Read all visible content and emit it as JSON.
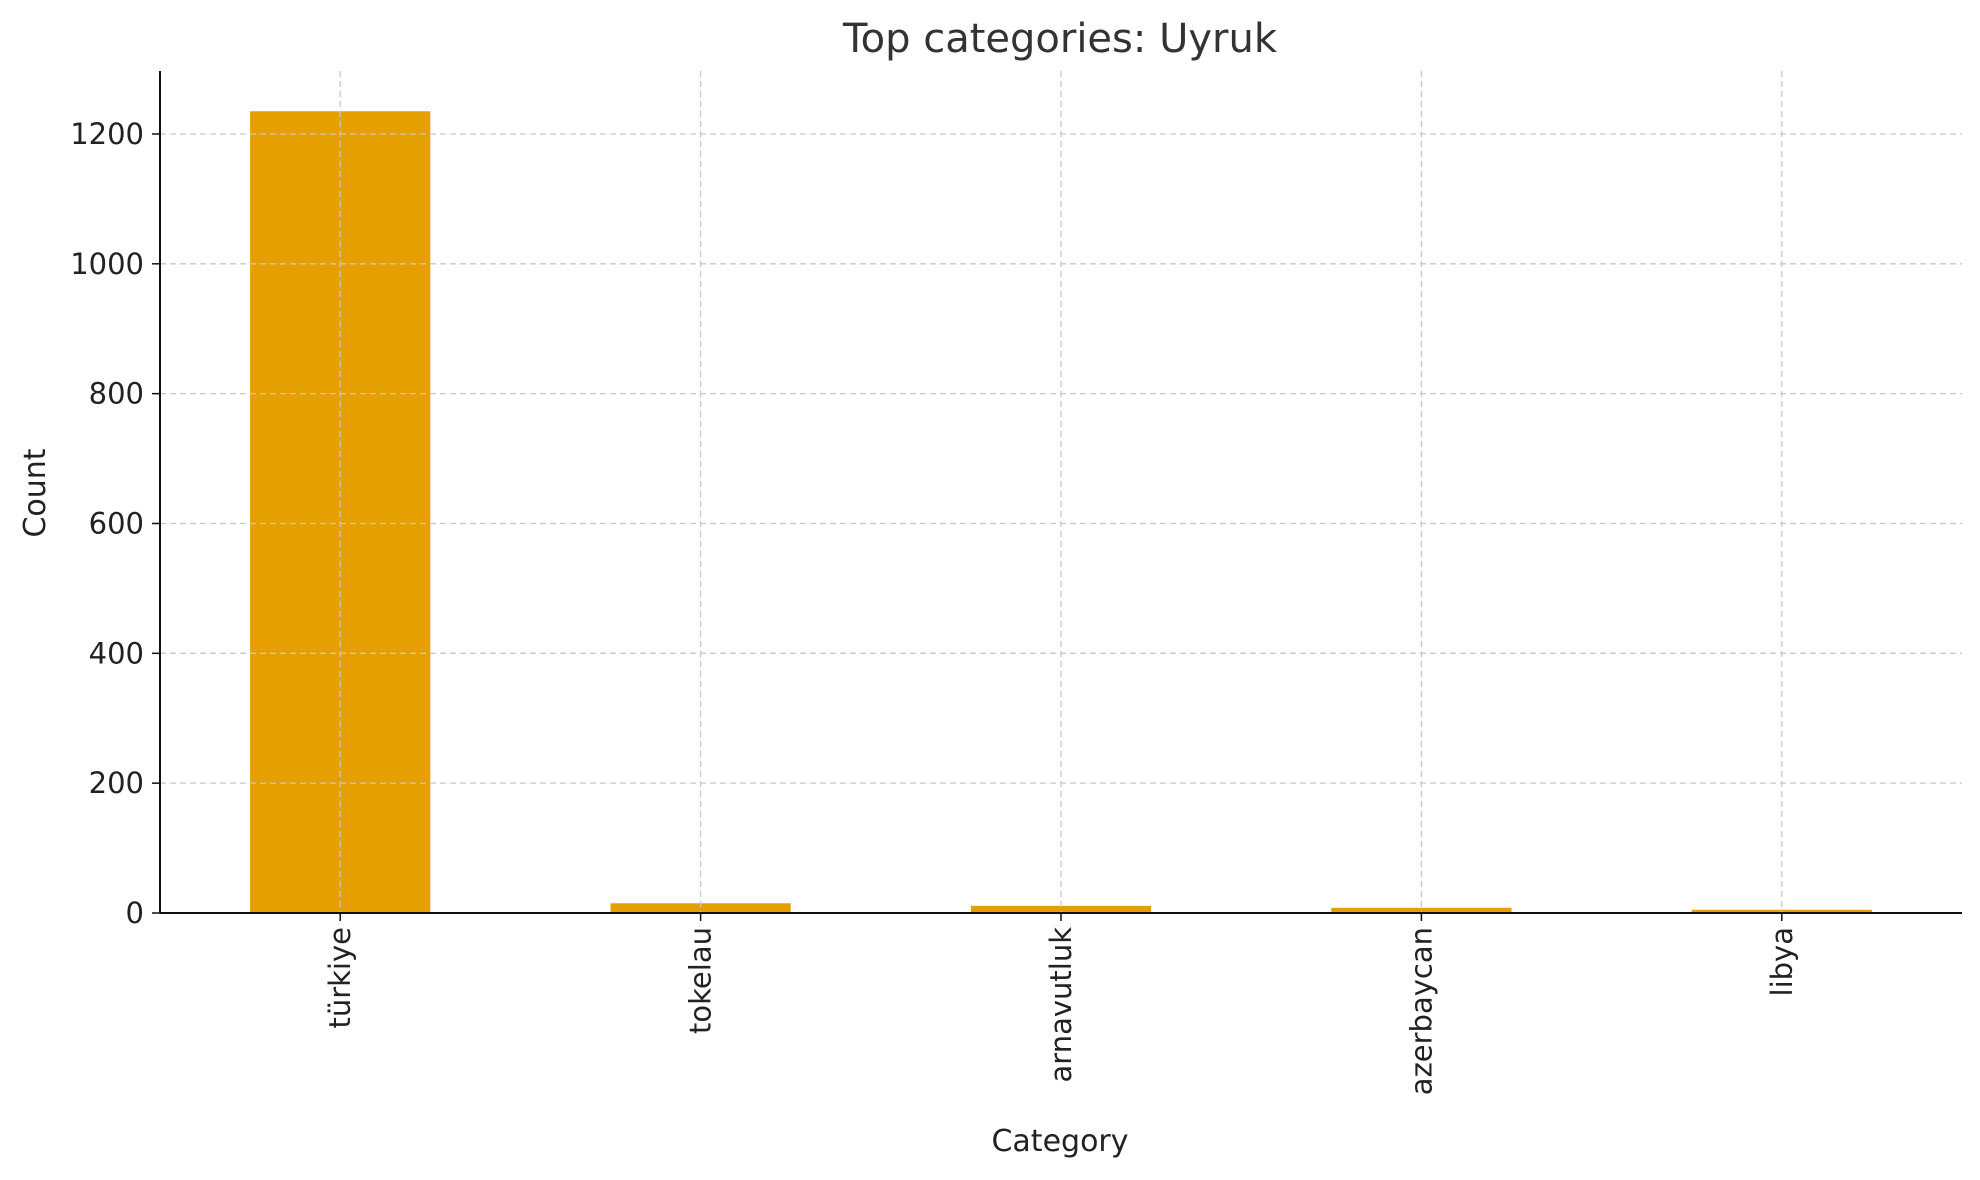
{
  "chart_data": {
    "type": "bar",
    "title": "Top categories: Uyruk",
    "xlabel": "Category",
    "ylabel": "Count",
    "categories": [
      "türkiye",
      "tokelau",
      "arnavutluk",
      "azerbaycan",
      "libya"
    ],
    "values": [
      1235,
      15,
      11,
      8,
      5
    ],
    "ylim": [
      0,
      1297
    ],
    "yticks": [
      0,
      200,
      400,
      600,
      800,
      1000,
      1200
    ],
    "grid": true,
    "bar_color": "#E69F00"
  }
}
